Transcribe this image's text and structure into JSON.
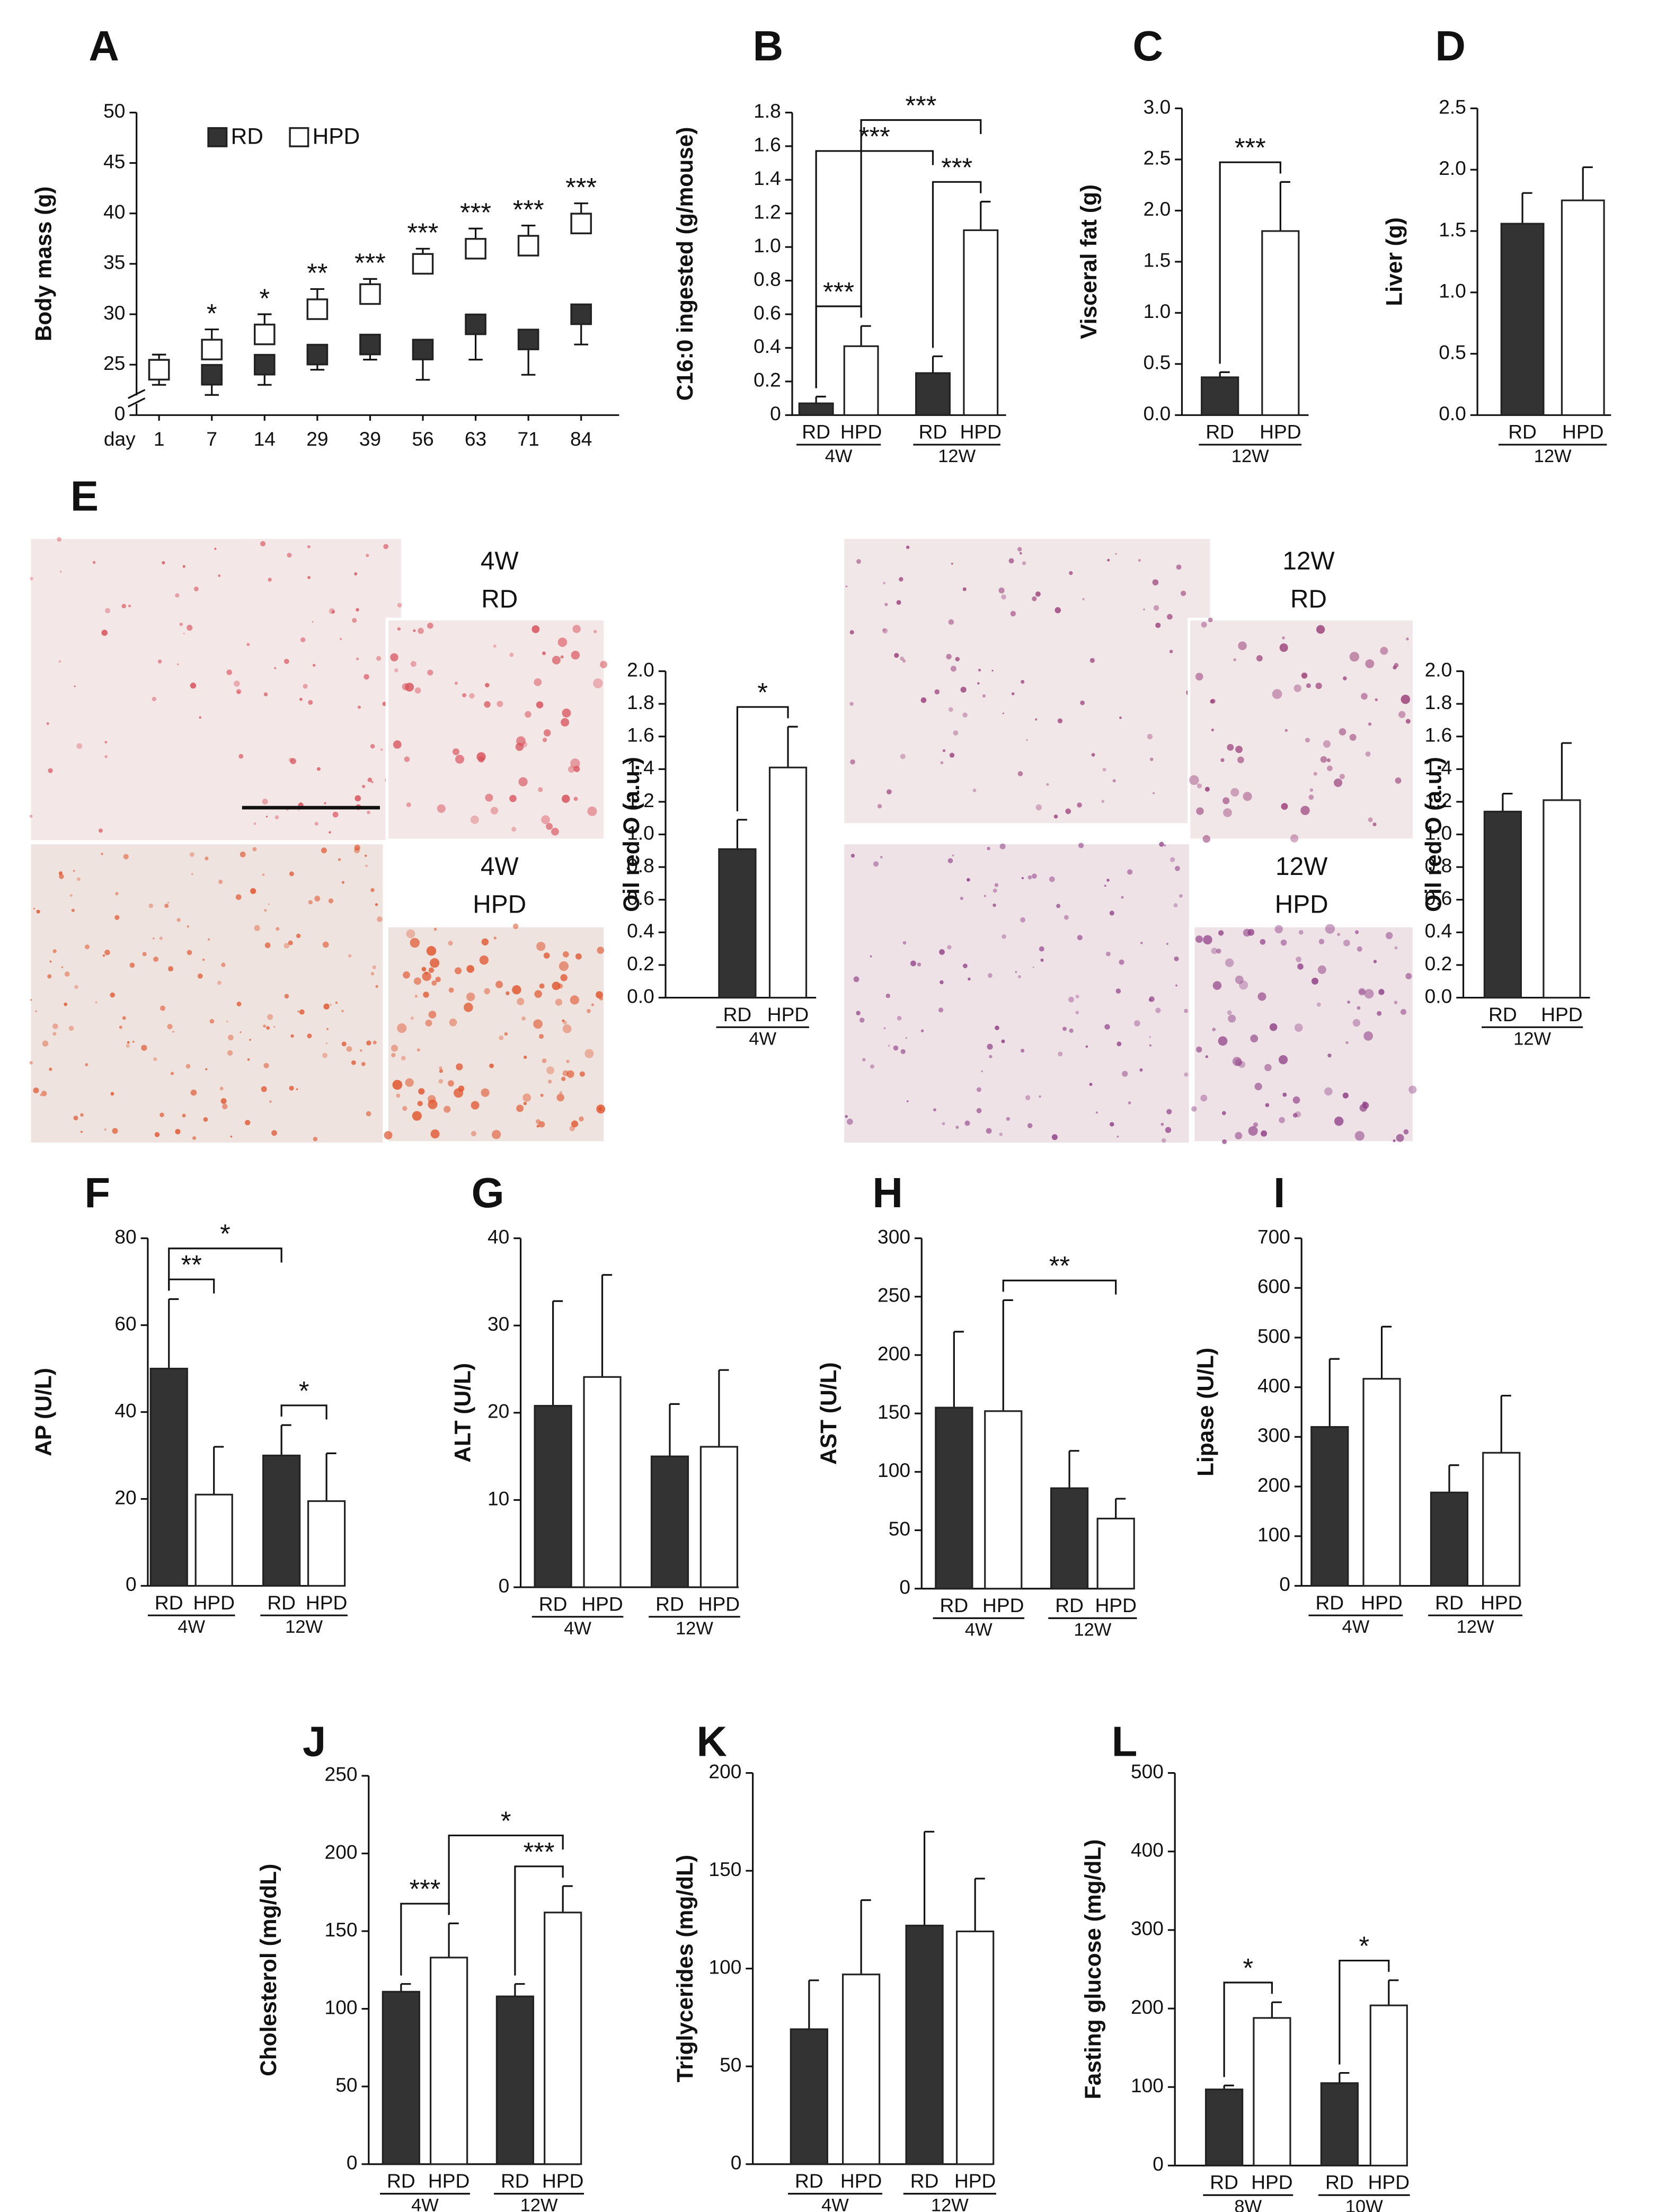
{
  "chart_data": [
    {
      "type": "scatter",
      "panel": "A",
      "ylabel": "Body mass (g)",
      "xlabel": "day",
      "categories": [
        "1",
        "7",
        "14",
        "29",
        "39",
        "56",
        "63",
        "71",
        "84"
      ],
      "series": [
        {
          "name": "RD",
          "color": "#333333",
          "error_direction": "down",
          "values": [
            24.5,
            24,
            25,
            26,
            27,
            26.5,
            29,
            27.5,
            30
          ],
          "errors": [
            1.5,
            2,
            2,
            1.5,
            1.5,
            3,
            3.5,
            3.5,
            3
          ]
        },
        {
          "name": "HPD",
          "color": "#ffffff",
          "error_direction": "up",
          "values": [
            24.5,
            26.5,
            28,
            30.5,
            32,
            35,
            36.5,
            36.8,
            39
          ],
          "errors": [
            1.5,
            2,
            2,
            2,
            1.5,
            1.5,
            2,
            2,
            2
          ]
        }
      ],
      "significance": [
        {
          "index": 1,
          "label": "*"
        },
        {
          "index": 2,
          "label": "*"
        },
        {
          "index": 3,
          "label": "**"
        },
        {
          "index": 4,
          "label": "***"
        },
        {
          "index": 5,
          "label": "***"
        },
        {
          "index": 6,
          "label": "***"
        },
        {
          "index": 7,
          "label": "***"
        },
        {
          "index": 8,
          "label": "***"
        }
      ],
      "ylim": [
        0,
        50
      ],
      "axis_break": [
        0,
        20
      ],
      "yticks": [
        0,
        25,
        30,
        35,
        40,
        45,
        50
      ]
    },
    {
      "type": "bar",
      "panel": "B",
      "ylabel": "C16:0 ingested (g/mouse)",
      "categories": [
        "RD",
        "HPD",
        "RD",
        "HPD"
      ],
      "groups": [
        "4W",
        "12W"
      ],
      "colors": [
        "#333333",
        "#ffffff",
        "#333333",
        "#ffffff"
      ],
      "values": [
        0.07,
        0.41,
        0.25,
        1.1
      ],
      "errors": [
        0.04,
        0.12,
        0.1,
        0.17
      ],
      "ylim": [
        0,
        1.8
      ],
      "yticks": [
        0,
        0.2,
        0.4,
        0.6,
        0.8,
        {
          "value": 1,
          "label": "1.0"
        },
        1.2,
        1.4,
        1.6,
        1.8
      ],
      "brackets": [
        {
          "from": 0,
          "to": 1,
          "label": "***"
        },
        {
          "from": 2,
          "to": 3,
          "label": "***"
        },
        {
          "from": 0,
          "to": 2,
          "label": "***"
        },
        {
          "from": 1,
          "to": 3,
          "label": "***"
        }
      ]
    },
    {
      "type": "bar",
      "panel": "C",
      "ylabel": "Visceral fat (g)",
      "categories": [
        "RD",
        "HPD"
      ],
      "groups": [
        "12W"
      ],
      "colors": [
        "#333333",
        "#ffffff"
      ],
      "values": [
        0.37,
        1.8
      ],
      "errors": [
        0.05,
        0.48
      ],
      "ylim": [
        0,
        3
      ],
      "yticks": [
        {
          "value": 0,
          "label": "0.0"
        },
        0.5,
        {
          "value": 1,
          "label": "1.0"
        },
        1.5,
        {
          "value": 2,
          "label": "2.0"
        },
        2.5,
        {
          "value": 3,
          "label": "3.0"
        }
      ],
      "brackets": [
        {
          "from": 0,
          "to": 1,
          "label": "***"
        }
      ]
    },
    {
      "type": "bar",
      "panel": "D",
      "ylabel": "Liver (g)",
      "categories": [
        "RD",
        "HPD"
      ],
      "groups": [
        "12W"
      ],
      "colors": [
        "#333333",
        "#ffffff"
      ],
      "values": [
        1.56,
        1.75
      ],
      "errors": [
        0.25,
        0.27
      ],
      "ylim": [
        0,
        2.5
      ],
      "yticks": [
        {
          "value": 0,
          "label": "0.0"
        },
        0.5,
        {
          "value": 1,
          "label": "1.0"
        },
        1.5,
        {
          "value": 2,
          "label": "2.0"
        },
        2.5
      ],
      "brackets": []
    },
    {
      "type": "bar",
      "ylabel": "Oil  red O (a.u.)",
      "categories": [
        "RD",
        "HPD"
      ],
      "groups": [
        "4W"
      ],
      "colors": [
        "#333333",
        "#ffffff"
      ],
      "values": [
        0.91,
        1.41
      ],
      "errors": [
        0.18,
        0.25
      ],
      "ylim": [
        0,
        2
      ],
      "yticks": [
        {
          "value": 0,
          "label": "0.0"
        },
        0.2,
        0.4,
        0.6,
        0.8,
        {
          "value": 1,
          "label": "1.0"
        },
        1.2,
        1.4,
        1.6,
        1.8,
        {
          "value": 2,
          "label": "2.0"
        }
      ],
      "brackets": [
        {
          "from": 0,
          "to": 1,
          "label": "*"
        }
      ]
    },
    {
      "type": "bar",
      "ylabel": "Oil  red O (a.u.)",
      "categories": [
        "RD",
        "HPD"
      ],
      "groups": [
        "12W"
      ],
      "colors": [
        "#333333",
        "#ffffff"
      ],
      "values": [
        1.14,
        1.21
      ],
      "errors": [
        0.11,
        0.35
      ],
      "ylim": [
        0,
        2
      ],
      "yticks": [
        {
          "value": 0,
          "label": "0.0"
        },
        0.2,
        0.4,
        0.6,
        0.8,
        {
          "value": 1,
          "label": "1.0"
        },
        1.2,
        1.4,
        1.6,
        1.8,
        {
          "value": 2,
          "label": "2.0"
        }
      ],
      "brackets": []
    },
    {
      "type": "bar",
      "panel": "F",
      "ylabel": "AP (U/L)",
      "categories": [
        "RD",
        "HPD",
        "RD",
        "HPD"
      ],
      "groups": [
        "4W",
        "12W"
      ],
      "colors": [
        "#333333",
        "#ffffff",
        "#333333",
        "#ffffff"
      ],
      "values": [
        50,
        21,
        30,
        19.5
      ],
      "errors": [
        16,
        11,
        7,
        11
      ],
      "ylim": [
        0,
        80
      ],
      "yticks": [
        0,
        20,
        40,
        60,
        80
      ],
      "brackets": [
        {
          "from": 0,
          "to": 1,
          "label": "**"
        },
        {
          "from": 2,
          "to": 3,
          "label": "*"
        },
        {
          "from": 0,
          "to": 2,
          "label": "*"
        }
      ]
    },
    {
      "type": "bar",
      "panel": "G",
      "ylabel": "ALT (U/L)",
      "categories": [
        "RD",
        "HPD",
        "RD",
        "HPD"
      ],
      "groups": [
        "4W",
        "12W"
      ],
      "colors": [
        "#333333",
        "#ffffff",
        "#333333",
        "#ffffff"
      ],
      "values": [
        20.8,
        24.1,
        15,
        16.1
      ],
      "errors": [
        12,
        11.7,
        6,
        8.8
      ],
      "ylim": [
        0,
        40
      ],
      "yticks": [
        0,
        10,
        20,
        30,
        40
      ],
      "brackets": []
    },
    {
      "type": "bar",
      "panel": "H",
      "ylabel": "AST (U/L)",
      "categories": [
        "RD",
        "HPD",
        "RD",
        "HPD"
      ],
      "groups": [
        "4W",
        "12W"
      ],
      "colors": [
        "#333333",
        "#ffffff",
        "#333333",
        "#ffffff"
      ],
      "values": [
        155,
        152,
        86,
        60
      ],
      "errors": [
        65,
        95,
        32,
        17
      ],
      "ylim": [
        0,
        300
      ],
      "yticks": [
        0,
        50,
        100,
        150,
        200,
        250,
        300
      ],
      "brackets": [
        {
          "from": 1,
          "to": 3,
          "label": "**"
        }
      ]
    },
    {
      "type": "bar",
      "panel": "I",
      "ylabel": "Lipase (U/L)",
      "categories": [
        "RD",
        "HPD",
        "RD",
        "HPD"
      ],
      "groups": [
        "4W",
        "12W"
      ],
      "colors": [
        "#333333",
        "#ffffff",
        "#333333",
        "#ffffff"
      ],
      "values": [
        320,
        417,
        188,
        268
      ],
      "errors": [
        137,
        105,
        55,
        115
      ],
      "ylim": [
        0,
        700
      ],
      "yticks": [
        0,
        100,
        200,
        300,
        400,
        500,
        600,
        700
      ],
      "brackets": []
    },
    {
      "type": "bar",
      "panel": "J",
      "ylabel": "Cholesterol (mg/dL)",
      "categories": [
        "RD",
        "HPD",
        "RD",
        "HPD"
      ],
      "groups": [
        "4W",
        "12W"
      ],
      "colors": [
        "#333333",
        "#ffffff",
        "#333333",
        "#ffffff"
      ],
      "values": [
        111,
        133,
        108,
        162
      ],
      "errors": [
        5,
        22,
        8,
        17
      ],
      "ylim": [
        0,
        250
      ],
      "yticks": [
        0,
        50,
        100,
        150,
        200,
        250
      ],
      "brackets": [
        {
          "from": 0,
          "to": 1,
          "label": "***"
        },
        {
          "from": 2,
          "to": 3,
          "label": "***"
        },
        {
          "from": 1,
          "to": 3,
          "label": "*"
        }
      ]
    },
    {
      "type": "bar",
      "panel": "K",
      "ylabel": "Triglycerides (mg/dL)",
      "categories": [
        "RD",
        "HPD",
        "RD",
        "HPD"
      ],
      "groups": [
        "4W",
        "12W"
      ],
      "colors": [
        "#333333",
        "#ffffff",
        "#333333",
        "#ffffff"
      ],
      "values": [
        69,
        97,
        122,
        119
      ],
      "errors": [
        25,
        38,
        48,
        27
      ],
      "ylim": [
        0,
        200
      ],
      "yticks": [
        0,
        50,
        100,
        150,
        200
      ],
      "brackets": []
    },
    {
      "type": "bar",
      "panel": "L",
      "ylabel": "Fasting glucose (mg/dL)",
      "categories": [
        "RD",
        "HPD",
        "RD",
        "HPD"
      ],
      "groups": [
        "8W",
        "10W"
      ],
      "colors": [
        "#333333",
        "#ffffff",
        "#333333",
        "#ffffff"
      ],
      "values": [
        97,
        188,
        105,
        204
      ],
      "errors": [
        5,
        20,
        13,
        32
      ],
      "ylim": [
        0,
        500
      ],
      "yticks": [
        0,
        100,
        200,
        300,
        400,
        500
      ],
      "brackets": [
        {
          "from": 0,
          "to": 1,
          "label": "*"
        },
        {
          "from": 2,
          "to": 3,
          "label": "*"
        }
      ]
    }
  ],
  "micrographs": {
    "panel": "E",
    "images": [
      {
        "lines": [
          "4W",
          "RD"
        ]
      },
      {
        "lines": [
          "4W",
          "HPD"
        ]
      },
      {
        "lines": [
          "12W",
          "RD"
        ]
      },
      {
        "lines": [
          "12W",
          "HPD"
        ]
      }
    ]
  }
}
